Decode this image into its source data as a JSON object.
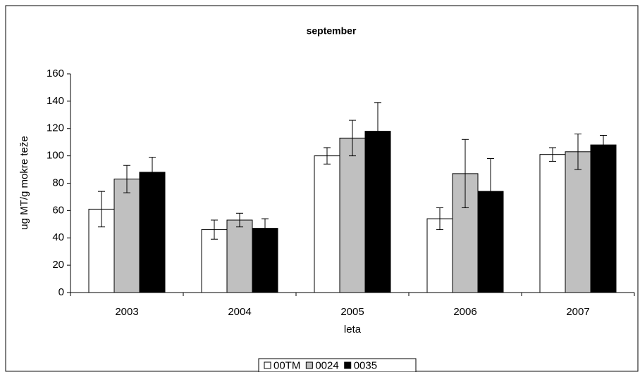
{
  "chart_data": {
    "type": "bar",
    "title": "september",
    "x_label": "leta",
    "y_label": "ug MT/g mokre teže",
    "categories": [
      "2003",
      "2004",
      "2005",
      "2006",
      "2007"
    ],
    "series": [
      {
        "name": "00TM",
        "color": "#ffffff",
        "values": [
          61,
          46,
          100,
          54,
          101
        ],
        "errors": [
          13,
          7,
          6,
          8,
          5
        ]
      },
      {
        "name": "0024",
        "color": "#c0c0c0",
        "values": [
          83,
          53,
          113,
          87,
          103
        ],
        "errors": [
          10,
          5,
          13,
          25,
          13
        ]
      },
      {
        "name": "0035",
        "color": "#000000",
        "values": [
          88,
          47,
          118,
          74,
          108
        ],
        "errors": [
          11,
          7,
          21,
          24,
          7
        ]
      }
    ],
    "ylim": [
      0,
      160
    ],
    "yticks": [
      0,
      20,
      40,
      60,
      80,
      100,
      120,
      140,
      160
    ],
    "grid": false,
    "legend": "bottom"
  }
}
